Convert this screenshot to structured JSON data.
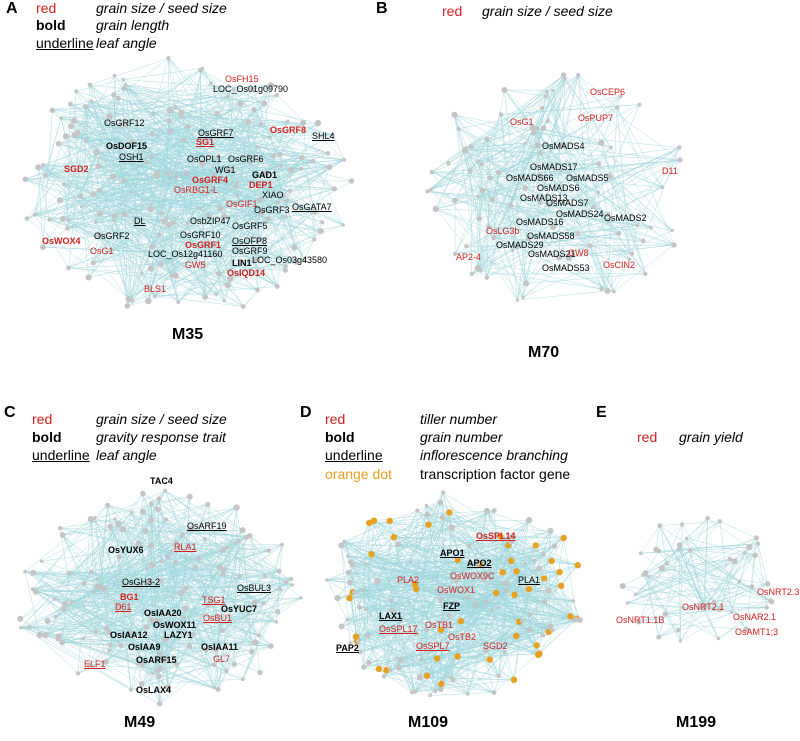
{
  "colors": {
    "edge": "#9fd6dc",
    "node": "#c4c4c4",
    "red": "#d42020",
    "orange": "#e8a020",
    "black": "#000000"
  },
  "panels": [
    {
      "letter": "A",
      "title": "M35",
      "legend": [
        {
          "key": "red",
          "style": "red",
          "desc": "grain size / seed size"
        },
        {
          "key": "bold",
          "style": "bold",
          "desc": "grain length"
        },
        {
          "key": "underline",
          "style": "underline",
          "desc": "leaf angle"
        }
      ],
      "labels": [
        {
          "text": "OsFH15",
          "color": "red"
        },
        {
          "text": "LOC_Os01g09790",
          "color": "black"
        },
        {
          "text": "OsGRF12",
          "color": "black"
        },
        {
          "text": "OsGRF7",
          "color": "black",
          "underline": true
        },
        {
          "text": "OsGRF8",
          "color": "red",
          "bold": true
        },
        {
          "text": "SG1",
          "color": "red",
          "bold": true,
          "underline": true
        },
        {
          "text": "SHL4",
          "color": "black",
          "underline": true
        },
        {
          "text": "OsDOF15",
          "color": "black",
          "bold": true
        },
        {
          "text": "OSH1",
          "color": "black",
          "underline": true
        },
        {
          "text": "OsOPL1",
          "color": "black"
        },
        {
          "text": "OsGRF6",
          "color": "black"
        },
        {
          "text": "SGD2",
          "color": "red",
          "bold": true
        },
        {
          "text": "WG1",
          "color": "black"
        },
        {
          "text": "GAD1",
          "color": "black",
          "bold": true
        },
        {
          "text": "OsGRF4",
          "color": "red",
          "bold": true
        },
        {
          "text": "DEP1",
          "color": "red",
          "bold": true
        },
        {
          "text": "OsRBG1-L",
          "color": "red"
        },
        {
          "text": "XIAO",
          "color": "black"
        },
        {
          "text": "OsGIF1",
          "color": "red"
        },
        {
          "text": "OsGRF3",
          "color": "black"
        },
        {
          "text": "OsGATA7",
          "color": "black",
          "underline": true
        },
        {
          "text": "DL",
          "color": "black",
          "underline": true
        },
        {
          "text": "OsbZIP47",
          "color": "black"
        },
        {
          "text": "OsGRF5",
          "color": "black"
        },
        {
          "text": "OsGRF2",
          "color": "black"
        },
        {
          "text": "OsGRF10",
          "color": "black"
        },
        {
          "text": "OsOFP8",
          "color": "black",
          "underline": true
        },
        {
          "text": "OsWOX4",
          "color": "red",
          "bold": true
        },
        {
          "text": "OsGRF1",
          "color": "red",
          "bold": true
        },
        {
          "text": "OsGRF9",
          "color": "black"
        },
        {
          "text": "OsG1",
          "color": "red"
        },
        {
          "text": "LOC_Os12g41160",
          "color": "black"
        },
        {
          "text": "LOC_Os03g43580",
          "color": "black"
        },
        {
          "text": "GW5",
          "color": "red"
        },
        {
          "text": "LIN1",
          "color": "black",
          "bold": true
        },
        {
          "text": "OsIQD14",
          "color": "red",
          "bold": true
        },
        {
          "text": "BLS1",
          "color": "red"
        }
      ]
    },
    {
      "letter": "B",
      "title": "M70",
      "legend": [
        {
          "key": "red",
          "style": "red",
          "desc": "grain size / seed size"
        }
      ],
      "labels": [
        {
          "text": "OsCEP6",
          "color": "red"
        },
        {
          "text": "OsG1",
          "color": "red"
        },
        {
          "text": "OsPUP7",
          "color": "red"
        },
        {
          "text": "OsMADS4",
          "color": "black"
        },
        {
          "text": "OsMADS17",
          "color": "black"
        },
        {
          "text": "D11",
          "color": "red"
        },
        {
          "text": "OsMADS66",
          "color": "black"
        },
        {
          "text": "OsMADS5",
          "color": "black"
        },
        {
          "text": "OsMADS6",
          "color": "black"
        },
        {
          "text": "OsMADS13",
          "color": "black"
        },
        {
          "text": "OsMADS7",
          "color": "black"
        },
        {
          "text": "OsMADS24",
          "color": "black"
        },
        {
          "text": "OsMADS2",
          "color": "black"
        },
        {
          "text": "OsMADS16",
          "color": "black"
        },
        {
          "text": "OsLG3b",
          "color": "red"
        },
        {
          "text": "OsMADS58",
          "color": "black"
        },
        {
          "text": "OsMADS29",
          "color": "black"
        },
        {
          "text": "OsMADS21",
          "color": "black"
        },
        {
          "text": "GW8",
          "color": "red"
        },
        {
          "text": "AP2-4",
          "color": "red"
        },
        {
          "text": "OsMADS53",
          "color": "black"
        },
        {
          "text": "OsCIN2",
          "color": "red"
        }
      ]
    },
    {
      "letter": "C",
      "title": "M49",
      "legend": [
        {
          "key": "red",
          "style": "red",
          "desc": "grain size / seed size"
        },
        {
          "key": "bold",
          "style": "bold",
          "desc": "gravity response trait"
        },
        {
          "key": "underline",
          "style": "underline",
          "desc": "leaf angle"
        }
      ],
      "labels": [
        {
          "text": "TAC4",
          "color": "black",
          "bold": true
        },
        {
          "text": "OsARF19",
          "color": "black",
          "underline": true
        },
        {
          "text": "OsYUX6",
          "color": "black",
          "bold": true
        },
        {
          "text": "RLA1",
          "color": "red",
          "underline": true
        },
        {
          "text": "OsGH3-2",
          "color": "black",
          "underline": true
        },
        {
          "text": "OsBUL3",
          "color": "black",
          "underline": true
        },
        {
          "text": "BG1",
          "color": "red",
          "bold": true
        },
        {
          "text": "TSG1",
          "color": "red",
          "underline": true
        },
        {
          "text": "D61",
          "color": "red",
          "underline": true
        },
        {
          "text": "OsYUC7",
          "color": "black",
          "bold": true
        },
        {
          "text": "OsIAA20",
          "color": "black",
          "bold": true
        },
        {
          "text": "OsBU1",
          "color": "red",
          "underline": true
        },
        {
          "text": "OsWOX11",
          "color": "black",
          "bold": true
        },
        {
          "text": "OsIAA12",
          "color": "black",
          "bold": true
        },
        {
          "text": "LAZY1",
          "color": "black",
          "bold": true
        },
        {
          "text": "OsIAA9",
          "color": "black",
          "bold": true
        },
        {
          "text": "OsIAA11",
          "color": "black",
          "bold": true
        },
        {
          "text": "ELF1",
          "color": "red",
          "underline": true
        },
        {
          "text": "OsARF15",
          "color": "black",
          "bold": true
        },
        {
          "text": "GL7",
          "color": "red"
        },
        {
          "text": "OsLAX4",
          "color": "black",
          "bold": true
        }
      ]
    },
    {
      "letter": "D",
      "title": "M109",
      "legend": [
        {
          "key": "red",
          "style": "red",
          "desc": "tiller number"
        },
        {
          "key": "bold",
          "style": "bold",
          "desc": "grain number"
        },
        {
          "key": "underline",
          "style": "underline",
          "desc": "inflorescence branching"
        },
        {
          "key": "orange dot",
          "style": "orange",
          "desc": "transcription factor gene"
        }
      ],
      "labels": [
        {
          "text": "OsSPL14",
          "color": "red",
          "bold": true,
          "underline": true
        },
        {
          "text": "APO1",
          "color": "black",
          "bold": true,
          "underline": true
        },
        {
          "text": "APO2",
          "color": "black",
          "bold": true,
          "underline": true
        },
        {
          "text": "OsWOX9C",
          "color": "red"
        },
        {
          "text": "PLA2",
          "color": "red"
        },
        {
          "text": "OsWOX1",
          "color": "red"
        },
        {
          "text": "PLA1",
          "color": "black",
          "underline": true
        },
        {
          "text": "FZP",
          "color": "black",
          "bold": true,
          "underline": true
        },
        {
          "text": "LAX1",
          "color": "black",
          "bold": true,
          "underline": true
        },
        {
          "text": "OsTB1",
          "color": "red"
        },
        {
          "text": "OsSPL17",
          "color": "red",
          "underline": true
        },
        {
          "text": "OsTB2",
          "color": "red"
        },
        {
          "text": "PAP2",
          "color": "black",
          "bold": true,
          "underline": true
        },
        {
          "text": "OsSPL7",
          "color": "red",
          "underline": true
        },
        {
          "text": "SGD2",
          "color": "red"
        }
      ]
    },
    {
      "letter": "E",
      "title": "M199",
      "legend": [
        {
          "key": "red",
          "style": "red",
          "desc": "grain yield"
        }
      ],
      "labels": [
        {
          "text": "OsNRT2.3",
          "color": "red"
        },
        {
          "text": "OsNRT2.1",
          "color": "red"
        },
        {
          "text": "OsNRT1.1B",
          "color": "red"
        },
        {
          "text": "OsNAR2.1",
          "color": "red"
        },
        {
          "text": "OsAMT1;3",
          "color": "red"
        }
      ]
    }
  ]
}
